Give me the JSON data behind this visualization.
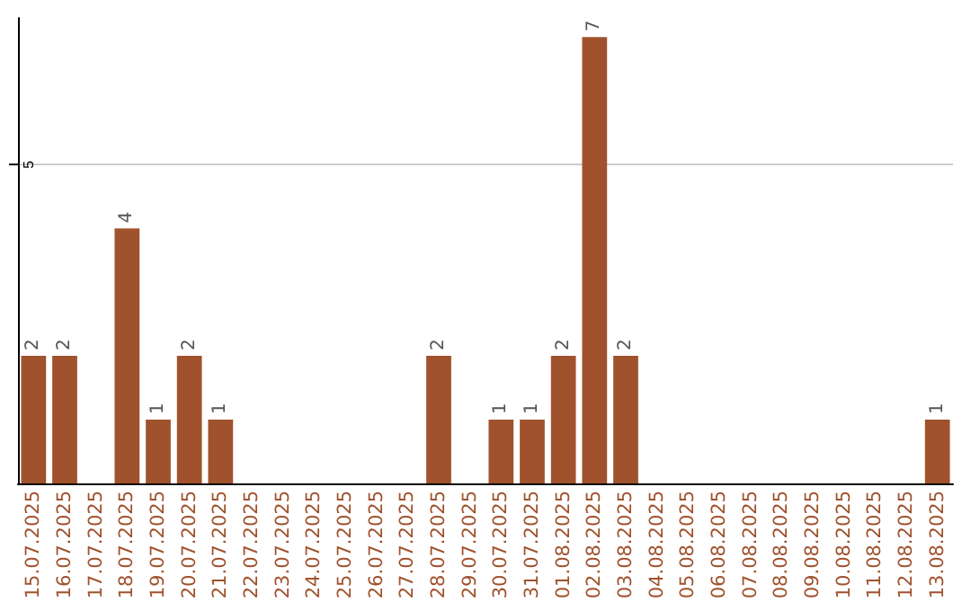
{
  "chart_data": {
    "type": "bar",
    "categories": [
      "15.07.2025",
      "16.07.2025",
      "17.07.2025",
      "18.07.2025",
      "19.07.2025",
      "20.07.2025",
      "21.07.2025",
      "22.07.2025",
      "23.07.2025",
      "24.07.2025",
      "25.07.2025",
      "26.07.2025",
      "27.07.2025",
      "28.07.2025",
      "29.07.2025",
      "30.07.2025",
      "31.07.2025",
      "01.08.2025",
      "02.08.2025",
      "03.08.2025",
      "04.08.2025",
      "05.08.2025",
      "06.08.2025",
      "07.08.2025",
      "08.08.2025",
      "09.08.2025",
      "10.08.2025",
      "11.08.2025",
      "12.08.2025",
      "13.08.2025"
    ],
    "values": [
      2,
      2,
      0,
      4,
      1,
      2,
      1,
      0,
      0,
      0,
      0,
      0,
      0,
      2,
      0,
      1,
      1,
      2,
      7,
      2,
      0,
      0,
      0,
      0,
      0,
      0,
      0,
      0,
      0,
      1
    ],
    "value_labels": [
      "2",
      "2",
      null,
      "4",
      "1",
      "2",
      "1",
      null,
      null,
      null,
      null,
      null,
      null,
      "2",
      null,
      "1",
      "1",
      "2",
      "7",
      "2",
      null,
      null,
      null,
      null,
      null,
      null,
      null,
      null,
      null,
      "1"
    ],
    "color": "#a0522d",
    "ylim": [
      0,
      7.3
    ],
    "yticks": [
      5
    ],
    "grid": "y"
  }
}
